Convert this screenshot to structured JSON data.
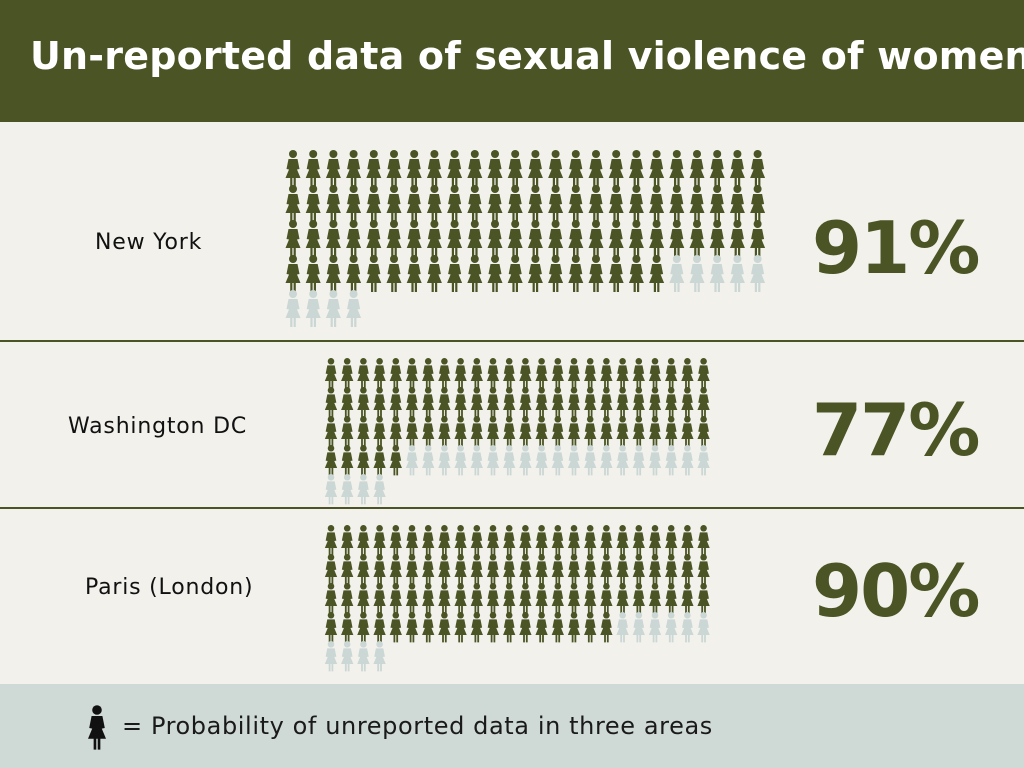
{
  "header": {
    "title": "Un-reported data of sexual violence of women"
  },
  "colors": {
    "header_bg": "#4a5424",
    "filled": "#4a5424",
    "empty": "#cbd7d5",
    "footer_bg": "#cfd9d6",
    "body_bg": "#f2f1ec"
  },
  "chart_data": {
    "type": "pictograph",
    "unit_icon": "woman-icon",
    "total_units": 100,
    "rows": [
      {
        "label": "New York",
        "value": 91,
        "display": "91%"
      },
      {
        "label": "Washington DC",
        "value": 77,
        "display": "77%"
      },
      {
        "label": "Paris (London)",
        "value": 90,
        "display": "90%"
      }
    ]
  },
  "legend": {
    "icon": "woman-icon",
    "text": "= Probability of unreported data in three areas"
  }
}
